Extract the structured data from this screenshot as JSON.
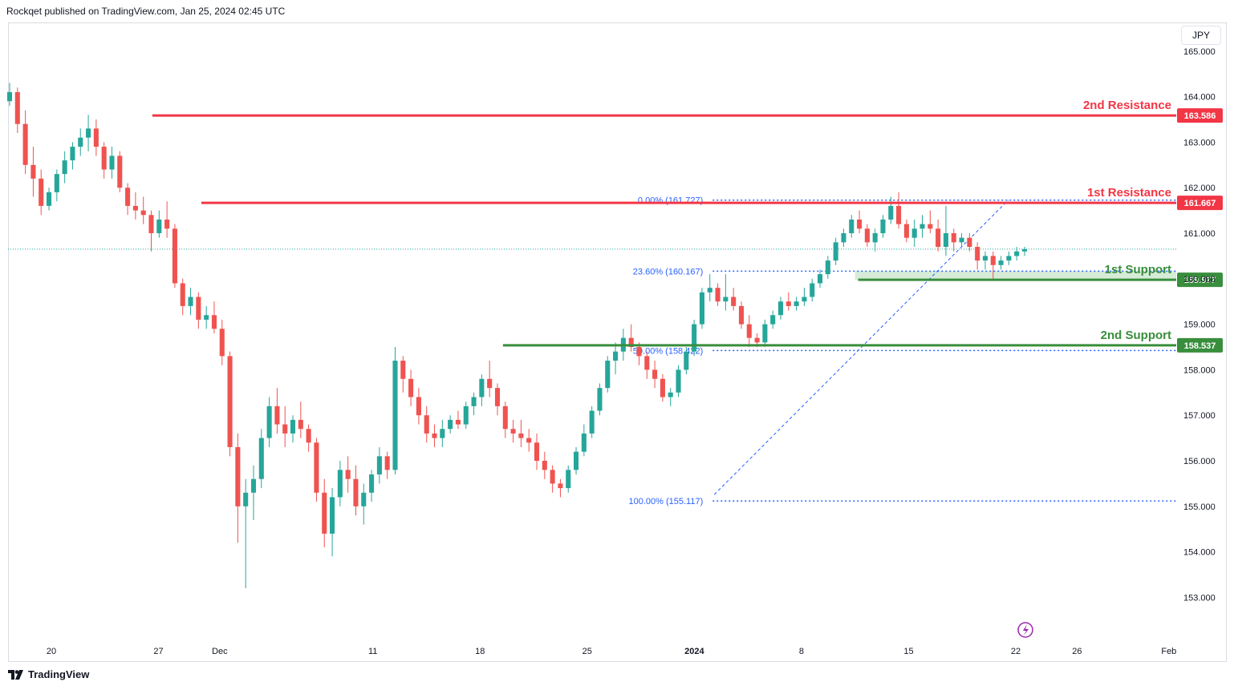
{
  "header": {
    "publisher_line": "Rockqet published on TradingView.com, Jan 25, 2024 02:45 UTC"
  },
  "toolbar": {
    "currency": "JPY"
  },
  "footer": {
    "brand": "TradingView"
  },
  "colors": {
    "up": "#26a69a",
    "down": "#ef5350",
    "resistance": "#f23645",
    "support": "#388e3c",
    "fib": "#2962ff",
    "zone": "#c8e6c9",
    "grid": "#f0f3fa"
  },
  "chart_data": {
    "type": "candlestick",
    "instrument_currency": "JPY",
    "y_ticks": [
      153,
      154,
      155,
      156,
      157,
      158,
      159,
      160,
      161,
      162,
      163,
      164,
      165
    ],
    "y_tick_labels": [
      "153.000",
      "154.000",
      "155.000",
      "156.000",
      "157.000",
      "158.000",
      "159.000",
      "160.000",
      "161.000",
      "162.000",
      "163.000",
      "164.000",
      "165.000"
    ],
    "ylim": [
      152.2,
      165.6
    ],
    "x_ticks": [
      {
        "label": "20",
        "day": 0
      },
      {
        "label": "27",
        "day": 7
      },
      {
        "label": "Dec",
        "day": 11
      },
      {
        "label": "11",
        "day": 21
      },
      {
        "label": "18",
        "day": 28
      },
      {
        "label": "25",
        "day": 35
      },
      {
        "label": "2024",
        "day": 42,
        "bold": true
      },
      {
        "label": "8",
        "day": 49
      },
      {
        "label": "15",
        "day": 56
      },
      {
        "label": "22",
        "day": 63
      },
      {
        "label": "26",
        "day": 67
      },
      {
        "label": "Feb",
        "day": 73
      }
    ],
    "levels": [
      {
        "name": "2nd Resistance",
        "price": 163.586,
        "tag": "163.586",
        "kind": "resistance",
        "from_day": 6.6
      },
      {
        "name": "1st Resistance",
        "price": 161.667,
        "tag": "161.667",
        "kind": "resistance",
        "from_day": 9.8
      },
      {
        "name": "1st Support",
        "price": 159.977,
        "tag": "159.977",
        "kind": "support",
        "from_day": 52.7
      },
      {
        "name": "2nd Support",
        "price": 158.537,
        "tag": "158.537",
        "kind": "support",
        "from_day": 29.5
      }
    ],
    "support_zone": {
      "from_day": 52.5,
      "low": 159.977,
      "high": 160.167
    },
    "fib_levels": [
      {
        "label": "0.00% (161.727)",
        "price": 161.727
      },
      {
        "label": "23.60% (160.167)",
        "price": 160.167
      },
      {
        "label": "50.00% (158.422)",
        "price": 158.422
      },
      {
        "label": "100.00% (155.117)",
        "price": 155.117
      }
    ],
    "fib_range_days": [
      43.2,
      77.2
    ],
    "fib_trend": {
      "from_day": 43.2,
      "from_price": 155.117,
      "to_day": 62.3,
      "to_price": 161.727
    },
    "last_price": 160.65,
    "ohlc": [
      [
        163.9,
        164.3,
        163.8,
        164.1
      ],
      [
        164.1,
        164.2,
        163.2,
        163.4
      ],
      [
        163.4,
        163.7,
        162.3,
        162.5
      ],
      [
        162.5,
        162.9,
        161.8,
        162.2
      ],
      [
        162.2,
        162.4,
        161.4,
        161.6
      ],
      [
        161.6,
        162.0,
        161.5,
        161.9
      ],
      [
        161.9,
        162.4,
        161.7,
        162.3
      ],
      [
        162.3,
        162.8,
        162.1,
        162.6
      ],
      [
        162.6,
        163.0,
        162.4,
        162.9
      ],
      [
        162.9,
        163.3,
        162.7,
        163.1
      ],
      [
        163.1,
        163.6,
        162.8,
        163.3
      ],
      [
        163.3,
        163.5,
        162.7,
        162.9
      ],
      [
        162.9,
        163.0,
        162.2,
        162.4
      ],
      [
        162.4,
        162.9,
        162.2,
        162.7
      ],
      [
        162.7,
        162.8,
        161.9,
        162.0
      ],
      [
        162.0,
        162.1,
        161.4,
        161.6
      ],
      [
        161.6,
        161.9,
        161.3,
        161.5
      ],
      [
        161.5,
        161.8,
        161.2,
        161.4
      ],
      [
        161.4,
        161.5,
        160.6,
        161.0
      ],
      [
        161.0,
        161.5,
        160.9,
        161.3
      ],
      [
        161.3,
        161.7,
        160.9,
        161.1
      ],
      [
        161.1,
        161.2,
        159.8,
        159.9
      ],
      [
        159.9,
        160.0,
        159.2,
        159.4
      ],
      [
        159.4,
        159.8,
        159.2,
        159.6
      ],
      [
        159.6,
        159.7,
        158.9,
        159.1
      ],
      [
        159.1,
        159.4,
        158.9,
        159.2
      ],
      [
        159.2,
        159.5,
        158.8,
        158.9
      ],
      [
        158.9,
        159.1,
        158.1,
        158.3
      ],
      [
        158.3,
        158.4,
        156.1,
        156.3
      ],
      [
        156.3,
        156.6,
        154.2,
        155.0
      ],
      [
        155.0,
        155.6,
        153.2,
        155.3
      ],
      [
        155.3,
        155.9,
        154.7,
        155.6
      ],
      [
        155.6,
        156.7,
        155.4,
        156.5
      ],
      [
        156.5,
        157.4,
        156.3,
        157.2
      ],
      [
        157.2,
        157.6,
        156.6,
        156.8
      ],
      [
        156.8,
        157.2,
        156.3,
        156.6
      ],
      [
        156.6,
        157.0,
        156.4,
        156.9
      ],
      [
        156.9,
        157.3,
        156.5,
        156.7
      ],
      [
        156.7,
        156.8,
        156.2,
        156.4
      ],
      [
        156.4,
        156.5,
        155.1,
        155.3
      ],
      [
        155.3,
        155.6,
        154.1,
        154.4
      ],
      [
        154.4,
        155.4,
        153.9,
        155.2
      ],
      [
        155.2,
        156.0,
        155.0,
        155.8
      ],
      [
        155.8,
        156.1,
        155.3,
        155.6
      ],
      [
        155.6,
        155.9,
        154.8,
        155.0
      ],
      [
        155.0,
        155.5,
        154.6,
        155.3
      ],
      [
        155.3,
        155.8,
        155.1,
        155.7
      ],
      [
        155.7,
        156.3,
        155.5,
        156.1
      ],
      [
        156.1,
        156.2,
        155.6,
        155.8
      ],
      [
        155.8,
        158.5,
        155.7,
        158.2
      ],
      [
        158.2,
        158.3,
        157.5,
        157.8
      ],
      [
        157.8,
        158.0,
        157.2,
        157.4
      ],
      [
        157.4,
        157.6,
        156.8,
        157.0
      ],
      [
        157.0,
        157.2,
        156.4,
        156.6
      ],
      [
        156.6,
        156.8,
        156.3,
        156.5
      ],
      [
        156.5,
        156.9,
        156.3,
        156.7
      ],
      [
        156.7,
        157.0,
        156.6,
        156.9
      ],
      [
        156.9,
        157.1,
        156.7,
        156.8
      ],
      [
        156.8,
        157.3,
        156.7,
        157.2
      ],
      [
        157.2,
        157.5,
        157.0,
        157.4
      ],
      [
        157.4,
        157.9,
        157.2,
        157.8
      ],
      [
        157.8,
        158.2,
        157.4,
        157.6
      ],
      [
        157.6,
        157.7,
        157.0,
        157.2
      ],
      [
        157.2,
        157.3,
        156.5,
        156.7
      ],
      [
        156.7,
        156.9,
        156.4,
        156.6
      ],
      [
        156.6,
        156.9,
        156.3,
        156.5
      ],
      [
        156.5,
        156.7,
        156.2,
        156.4
      ],
      [
        156.4,
        156.6,
        155.8,
        156.0
      ],
      [
        156.0,
        156.2,
        155.6,
        155.8
      ],
      [
        155.8,
        155.9,
        155.3,
        155.5
      ],
      [
        155.5,
        155.6,
        155.2,
        155.4
      ],
      [
        155.4,
        155.9,
        155.3,
        155.8
      ],
      [
        155.8,
        156.3,
        155.7,
        156.2
      ],
      [
        156.2,
        156.8,
        156.1,
        156.6
      ],
      [
        156.6,
        157.2,
        156.5,
        157.1
      ],
      [
        157.1,
        157.7,
        157.0,
        157.6
      ],
      [
        157.6,
        158.3,
        157.5,
        158.2
      ],
      [
        158.2,
        158.6,
        157.9,
        158.4
      ],
      [
        158.4,
        158.9,
        158.2,
        158.7
      ],
      [
        158.7,
        159.0,
        158.4,
        158.5
      ],
      [
        158.5,
        158.6,
        158.1,
        158.3
      ],
      [
        158.3,
        158.4,
        157.8,
        158.0
      ],
      [
        158.0,
        158.2,
        157.6,
        157.8
      ],
      [
        157.8,
        157.9,
        157.3,
        157.4
      ],
      [
        157.4,
        157.6,
        157.2,
        157.5
      ],
      [
        157.5,
        158.1,
        157.4,
        158.0
      ],
      [
        158.0,
        158.5,
        157.9,
        158.4
      ],
      [
        158.4,
        159.1,
        158.3,
        159.0
      ],
      [
        159.0,
        159.8,
        158.9,
        159.7
      ],
      [
        159.7,
        160.1,
        159.5,
        159.8
      ],
      [
        159.8,
        159.9,
        159.4,
        159.5
      ],
      [
        159.5,
        160.1,
        159.3,
        159.6
      ],
      [
        159.6,
        159.8,
        159.3,
        159.4
      ],
      [
        159.4,
        159.5,
        158.9,
        159.0
      ],
      [
        159.0,
        159.2,
        158.5,
        158.7
      ],
      [
        158.7,
        158.8,
        158.5,
        158.6
      ],
      [
        158.6,
        159.1,
        158.5,
        159.0
      ],
      [
        159.0,
        159.3,
        158.9,
        159.2
      ],
      [
        159.2,
        159.6,
        159.1,
        159.5
      ],
      [
        159.5,
        159.7,
        159.3,
        159.4
      ],
      [
        159.4,
        159.6,
        159.3,
        159.5
      ],
      [
        159.5,
        159.8,
        159.4,
        159.6
      ],
      [
        159.6,
        160.0,
        159.5,
        159.9
      ],
      [
        159.9,
        160.2,
        159.8,
        160.1
      ],
      [
        160.1,
        160.5,
        160.0,
        160.4
      ],
      [
        160.4,
        160.9,
        160.3,
        160.8
      ],
      [
        160.8,
        161.1,
        160.7,
        161.0
      ],
      [
        161.0,
        161.4,
        160.9,
        161.3
      ],
      [
        161.3,
        161.5,
        161.0,
        161.1
      ],
      [
        161.1,
        161.2,
        160.7,
        160.8
      ],
      [
        160.8,
        161.1,
        160.6,
        161.0
      ],
      [
        161.0,
        161.4,
        160.9,
        161.3
      ],
      [
        161.3,
        161.8,
        161.2,
        161.6
      ],
      [
        161.6,
        161.9,
        161.1,
        161.2
      ],
      [
        161.2,
        161.3,
        160.8,
        160.9
      ],
      [
        160.9,
        161.3,
        160.7,
        161.1
      ],
      [
        161.1,
        161.4,
        160.9,
        161.2
      ],
      [
        161.2,
        161.5,
        161.0,
        161.1
      ],
      [
        161.1,
        161.3,
        160.6,
        160.7
      ],
      [
        160.7,
        161.6,
        160.5,
        161.0
      ],
      [
        161.0,
        161.1,
        160.6,
        160.8
      ],
      [
        160.8,
        161.0,
        160.7,
        160.9
      ],
      [
        160.9,
        161.0,
        160.6,
        160.7
      ],
      [
        160.7,
        160.8,
        160.2,
        160.4
      ],
      [
        160.4,
        160.6,
        160.2,
        160.5
      ],
      [
        160.5,
        160.6,
        160.0,
        160.3
      ],
      [
        160.3,
        160.5,
        160.2,
        160.4
      ],
      [
        160.4,
        160.6,
        160.3,
        160.5
      ],
      [
        160.5,
        160.7,
        160.4,
        160.6
      ],
      [
        160.6,
        160.7,
        160.5,
        160.65
      ]
    ]
  }
}
